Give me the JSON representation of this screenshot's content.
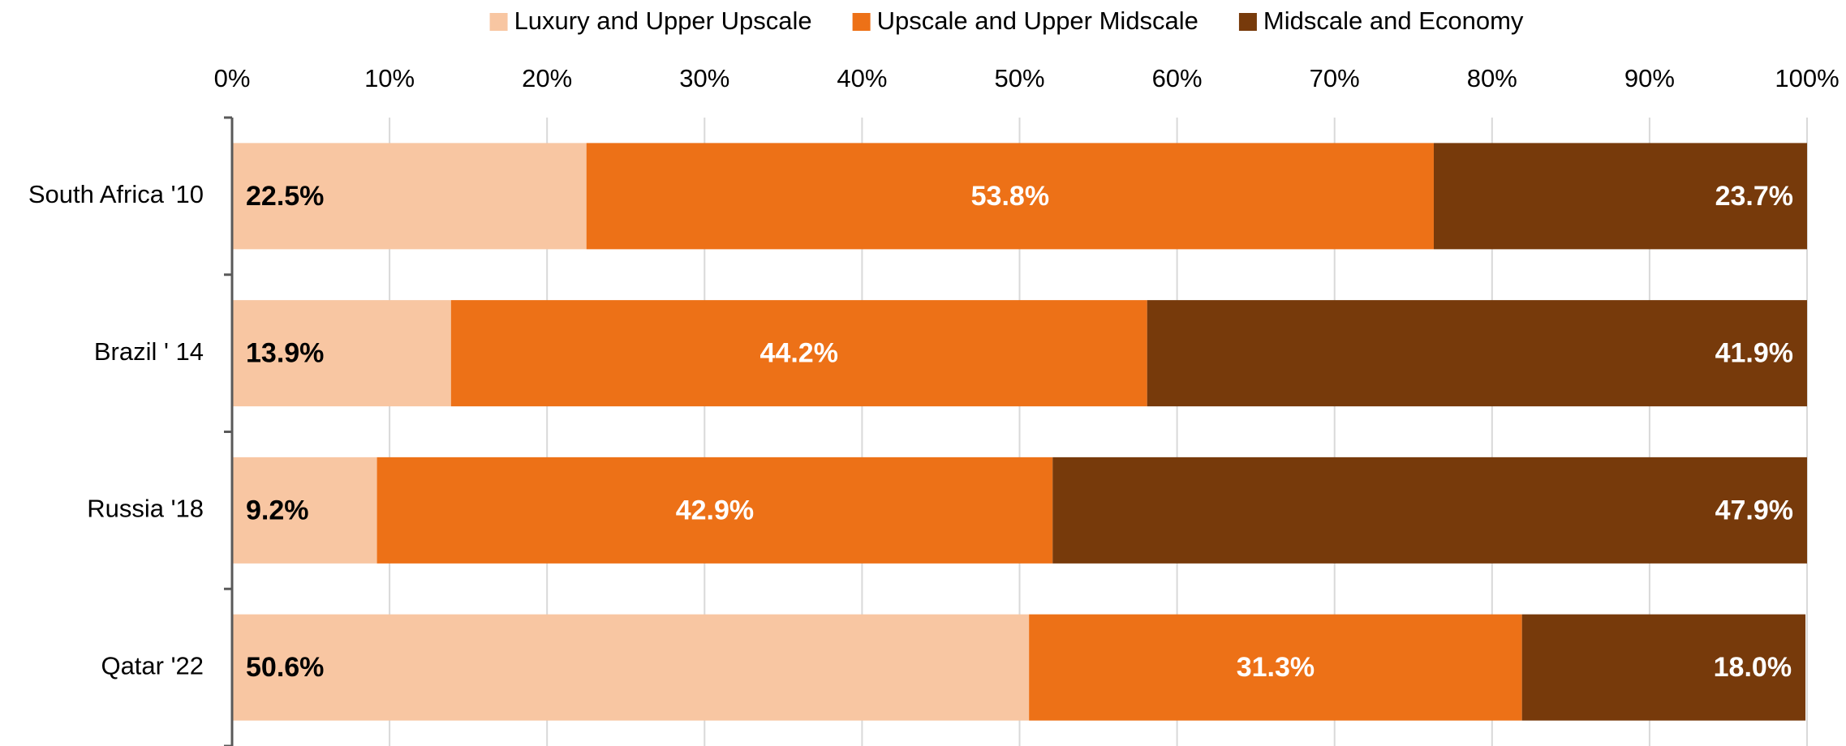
{
  "chart_data": {
    "type": "bar",
    "orientation": "horizontal",
    "stacked": true,
    "categories": [
      "South Africa '10",
      "Brazil ' 14",
      "Russia '18",
      "Qatar '22"
    ],
    "series": [
      {
        "name": "Luxury and Upper Upscale",
        "color": "#f8c6a2",
        "label_color": "#000000",
        "values": [
          22.5,
          13.9,
          9.2,
          50.6
        ],
        "value_labels": [
          "22.5%",
          "13.9%",
          "9.2%",
          "50.6%"
        ]
      },
      {
        "name": "Upscale and Upper Midscale",
        "color": "#ed7117",
        "label_color": "#ffffff",
        "values": [
          53.8,
          44.2,
          42.9,
          31.3
        ],
        "value_labels": [
          "53.8%",
          "44.2%",
          "42.9%",
          "31.3%"
        ]
      },
      {
        "name": "Midscale and Economy",
        "color": "#773a0b",
        "label_color": "#ffffff",
        "values": [
          23.7,
          41.9,
          47.9,
          18.0
        ],
        "value_labels": [
          "23.7%",
          "41.9%",
          "47.9%",
          "18.0%"
        ]
      }
    ],
    "xlim": [
      0,
      100
    ],
    "xticks": [
      {
        "value": 0,
        "label": "0%"
      },
      {
        "value": 10,
        "label": "10%"
      },
      {
        "value": 20,
        "label": "20%"
      },
      {
        "value": 30,
        "label": "30%"
      },
      {
        "value": 40,
        "label": "40%"
      },
      {
        "value": 50,
        "label": "50%"
      },
      {
        "value": 60,
        "label": "60%"
      },
      {
        "value": 70,
        "label": "70%"
      },
      {
        "value": 80,
        "label": "80%"
      },
      {
        "value": 90,
        "label": "90%"
      },
      {
        "value": 100,
        "label": "100%"
      }
    ],
    "grid": true,
    "legend": "top"
  }
}
